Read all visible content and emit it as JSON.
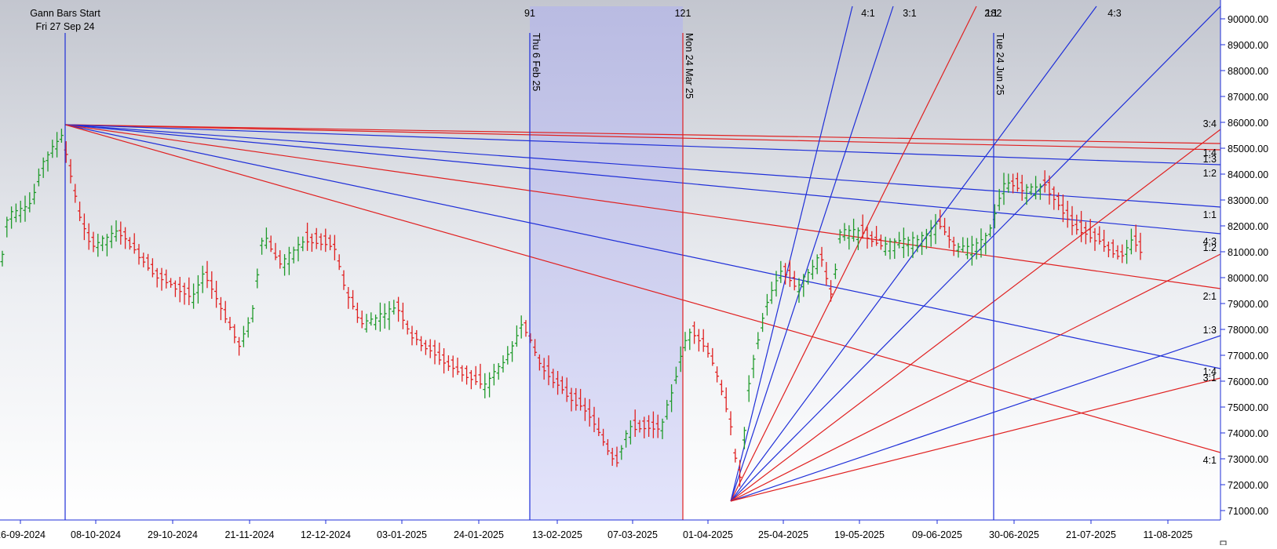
{
  "chart_data": {
    "type": "ohlc",
    "start_marker": {
      "title": "Gann Bars Start",
      "date": "Fri 27 Sep 24"
    },
    "y_ticks": [
      "90000.00",
      "89000.00",
      "88000.00",
      "87000.00",
      "86000.00",
      "85000.00",
      "84000.00",
      "83000.00",
      "82000.00",
      "81000.00",
      "80000.00",
      "79000.00",
      "78000.00",
      "77000.00",
      "76000.00",
      "75000.00",
      "74000.00",
      "73000.00",
      "72000.00",
      "71000.00"
    ],
    "x_ticks": [
      "26-09-2024",
      "08-10-2024",
      "29-10-2024",
      "21-11-2024",
      "12-12-2024",
      "03-01-2025",
      "24-01-2025",
      "13-02-2025",
      "07-03-2025",
      "01-04-2025",
      "25-04-2025",
      "19-05-2025",
      "09-06-2025",
      "30-06-2025",
      "21-07-2025",
      "11-08-2025"
    ],
    "markers": [
      {
        "count": "91",
        "date": "Thu 6 Feb 25",
        "color": "#1f2fd8"
      },
      {
        "count": "121",
        "date": "Mon 24 Mar 25",
        "color": "#e02020"
      },
      {
        "count": "182",
        "date": "Tue 24 Jun 25",
        "color": "#1f2fd8"
      }
    ],
    "fan_top_labels": [
      "4:1",
      "3:1",
      "2:1",
      "4:3"
    ],
    "fan_right_labels": [
      "3:4",
      "1:4",
      "1:3",
      "1:2",
      "1:1",
      "4:3",
      "1:2",
      "2:1",
      "1:3",
      "1:4",
      "3:1",
      "4:1"
    ],
    "ohlc_series": "Gann bars (up = green, down = red)",
    "ylim": [
      70800,
      90600
    ],
    "colors": {
      "up": "#1f9a2a",
      "down": "#e02020",
      "blue_line": "#1f2fd8",
      "red_line": "#e02020",
      "shade": "#c8cbee"
    }
  }
}
